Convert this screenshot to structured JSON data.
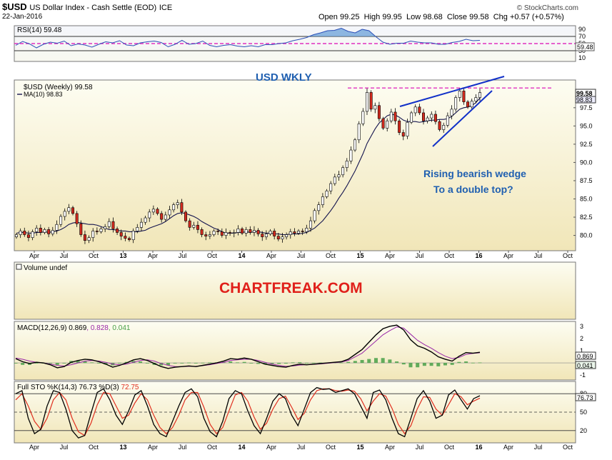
{
  "header": {
    "symbol": "$USD",
    "name": "US Dollar Index - Cash Settle (EOD)",
    "exchange": "ICE",
    "date": "22-Jan-2016",
    "credit": "© StockCharts.com",
    "open_label": "Open",
    "open": "99.25",
    "high_label": "High",
    "high": "99.95",
    "low_label": "Low",
    "low": "98.68",
    "close_label": "Close",
    "close": "99.58",
    "chg_label": "Chg",
    "chg": "+0.57 (+0.57%)"
  },
  "annotations": {
    "title": "USD WKLY",
    "wedge_line1": "Rising bearish wedge",
    "wedge_line2": "To a double top?",
    "watermark": "CHARTFREAK.COM"
  },
  "colors": {
    "panel_bg_top": "#fdfdf2",
    "panel_bg_bottom": "#f1e6b8",
    "rsi_line": "#2c50b8",
    "rsi_fill": "#6aa0d8",
    "ma_line": "#14144e",
    "up_candle": "#ffffff",
    "down_candle": "#d32a1e",
    "wedge": "#1030c8",
    "resistance": "#e030c0",
    "macd_line": "#000000",
    "signal_line": "#9a28a8",
    "hist": "#48a048",
    "sto_k": "#000000",
    "sto_d": "#e03020",
    "accent_blue": "#1f5fb0",
    "accent_red": "#e0201a"
  },
  "chart_data": {
    "type": "candlestick",
    "x_axis_labels": [
      "Apr",
      "Jul",
      "Oct",
      "13",
      "Apr",
      "Jul",
      "Oct",
      "14",
      "Apr",
      "Jul",
      "Oct",
      "15",
      "Apr",
      "Jul",
      "Oct",
      "16",
      "Apr",
      "Jul",
      "Oct"
    ],
    "x_axis_bold": [
      false,
      false,
      false,
      true,
      false,
      false,
      false,
      true,
      false,
      false,
      false,
      true,
      false,
      false,
      false,
      true,
      false,
      false,
      false
    ],
    "rsi": {
      "label": "RSI(14) 59.48",
      "value_badge": "59.48",
      "ticks": [
        "90",
        "70",
        "50",
        "30",
        "10"
      ],
      "tick_values": [
        90,
        70,
        50,
        30,
        10
      ],
      "ylim": [
        0,
        100
      ],
      "guide_levels": [
        70,
        30
      ],
      "dashed_level": 50,
      "values": [
        45,
        56,
        49,
        38,
        48,
        54,
        51,
        57,
        44,
        49,
        46,
        40,
        48,
        55,
        52,
        58,
        46,
        44,
        52,
        55,
        57,
        53,
        41,
        48,
        59,
        48,
        50,
        57,
        45,
        41,
        45,
        47,
        43,
        41,
        44,
        41,
        47,
        47,
        50,
        52,
        58,
        62,
        67,
        75,
        80,
        86,
        87,
        93,
        84,
        80,
        90,
        86,
        69,
        54,
        48,
        51,
        51,
        57,
        54,
        52,
        52,
        48,
        48,
        53,
        56,
        62,
        58,
        59
      ]
    },
    "price": {
      "label": "$USD (Weekly) 99.58",
      "ma_label": "MA(10) 98.83",
      "close_badge": "99.58",
      "ma_badge": "98.83",
      "ticks": [
        "97.5",
        "95.0",
        "92.5",
        "90.0",
        "87.5",
        "85.0",
        "82.5",
        "80.0"
      ],
      "tick_values": [
        97.5,
        95.0,
        92.5,
        90.0,
        87.5,
        85.0,
        82.5,
        80.0
      ],
      "ylim": [
        77.9,
        101.3
      ],
      "closes": [
        80.1,
        80.6,
        80.1,
        79.7,
        80.5,
        81.0,
        80.4,
        80.8,
        80.2,
        80.7,
        81.5,
        82.6,
        83.3,
        83.8,
        83.0,
        81.6,
        80.1,
        79.3,
        79.7,
        80.6,
        80.5,
        80.9,
        81.2,
        81.9,
        80.9,
        80.4,
        79.9,
        79.6,
        79.4,
        80.6,
        81.1,
        81.8,
        82.4,
        83.2,
        83.6,
        83.0,
        82.2,
        82.8,
        83.5,
        84.2,
        84.5,
        83.2,
        82.0,
        81.1,
        81.4,
        80.8,
        80.1,
        79.9,
        80.1,
        80.6,
        80.5,
        80.0,
        80.4,
        80.3,
        80.4,
        80.9,
        80.3,
        80.8,
        80.4,
        80.7,
        80.2,
        79.8,
        80.2,
        80.6,
        79.9,
        79.5,
        79.8,
        80.1,
        80.5,
        80.3,
        80.6,
        80.5,
        81.0,
        82.0,
        83.4,
        84.2,
        85.3,
        86.1,
        87.1,
        88.0,
        88.3,
        89.3,
        90.2,
        91.7,
        93.1,
        95.3,
        97.0,
        99.6,
        97.3,
        97.8,
        96.0,
        94.7,
        95.7,
        96.9,
        95.7,
        94.1,
        93.6,
        95.5,
        96.8,
        97.6,
        96.8,
        95.7,
        96.1,
        96.6,
        95.6,
        94.5,
        95.1,
        96.4,
        97.3,
        98.9,
        99.8,
        98.3,
        97.6,
        98.4,
        98.9,
        99.58
      ],
      "ma10": [
        80.3,
        80.4,
        80.4,
        80.3,
        80.3,
        80.4,
        80.4,
        80.5,
        80.4,
        80.5,
        80.6,
        80.8,
        81.1,
        81.5,
        81.7,
        81.8,
        81.7,
        81.6,
        81.5,
        81.5,
        81.4,
        81.2,
        81.0,
        80.8,
        80.8,
        80.7,
        80.6,
        80.6,
        80.5,
        80.5,
        80.5,
        80.6,
        80.7,
        81.0,
        81.2,
        81.4,
        81.6,
        81.9,
        82.3,
        82.7,
        83.0,
        83.1,
        83.0,
        82.8,
        82.6,
        82.3,
        81.9,
        81.6,
        81.3,
        81.0,
        80.8,
        80.5,
        80.3,
        80.3,
        80.3,
        80.4,
        80.4,
        80.5,
        80.4,
        80.5,
        80.5,
        80.4,
        80.3,
        80.3,
        80.2,
        80.2,
        80.1,
        80.1,
        80.2,
        80.2,
        80.2,
        80.3,
        80.4,
        80.7,
        81.0,
        81.5,
        82.0,
        82.7,
        83.4,
        84.2,
        85.1,
        85.9,
        86.8,
        87.8,
        88.8,
        90.0,
        91.2,
        92.6,
        93.6,
        94.6,
        95.4,
        95.9,
        96.4,
        96.6,
        96.5,
        96.2,
        95.8,
        95.6,
        95.6,
        95.6,
        95.5,
        95.6,
        95.7,
        95.8,
        95.8,
        95.9,
        95.9,
        96.0,
        96.3,
        96.8,
        97.3,
        97.5,
        97.6,
        97.8,
        98.2,
        98.83
      ]
    },
    "volume": {
      "label": "Volume undef"
    },
    "macd": {
      "label": "MACD(12,26,9)",
      "macd_value": "0.869",
      "signal_value": "0.828",
      "hist_value": "0.041",
      "ticks": [
        "3",
        "2",
        "1",
        "-1"
      ],
      "tick_values": [
        3,
        2,
        1,
        -1
      ],
      "ylim": [
        -1.4,
        3.4
      ],
      "macd": [
        0.35,
        0.1,
        -0.05,
        0.05,
        0.0,
        -0.15,
        -0.4,
        -0.3,
        0.05,
        0.2,
        0.3,
        0.25,
        0.1,
        -0.1,
        -0.35,
        -0.2,
        0.0,
        0.25,
        0.35,
        0.2,
        -0.05,
        -0.3,
        -0.45,
        -0.35,
        -0.3,
        -0.25,
        -0.3,
        -0.2,
        -0.1,
        0.0,
        0.15,
        0.35,
        0.3,
        0.4,
        0.3,
        0.1,
        -0.1,
        -0.2,
        -0.3,
        -0.35,
        -0.2,
        -0.1,
        -0.15,
        -0.1,
        -0.05,
        0.0,
        0.05,
        0.1,
        0.3,
        0.7,
        1.1,
        1.7,
        2.3,
        2.8,
        3.0,
        3.1,
        2.7,
        1.9,
        1.4,
        1.2,
        0.9,
        0.5,
        0.3,
        0.15,
        0.55,
        0.85,
        0.8,
        0.87
      ],
      "signal": [
        0.4,
        0.3,
        0.15,
        0.05,
        0.0,
        -0.1,
        -0.2,
        -0.25,
        -0.15,
        0.0,
        0.15,
        0.2,
        0.15,
        0.05,
        -0.1,
        -0.15,
        -0.1,
        0.05,
        0.2,
        0.25,
        0.15,
        -0.05,
        -0.2,
        -0.3,
        -0.3,
        -0.28,
        -0.27,
        -0.22,
        -0.15,
        -0.05,
        0.05,
        0.2,
        0.25,
        0.3,
        0.3,
        0.2,
        0.05,
        -0.1,
        -0.2,
        -0.28,
        -0.25,
        -0.18,
        -0.15,
        -0.12,
        -0.08,
        -0.03,
        0.02,
        0.07,
        0.2,
        0.5,
        0.8,
        1.3,
        1.8,
        2.3,
        2.65,
        2.95,
        2.85,
        2.35,
        1.85,
        1.5,
        1.2,
        0.85,
        0.55,
        0.35,
        0.45,
        0.7,
        0.78,
        0.83
      ]
    },
    "sto": {
      "label_prefix": "Full STO %K(14,3) %D(3)",
      "k_value": "76.73",
      "d_value": "72.75",
      "value_badge": "76.73",
      "ticks": [
        "80",
        "50",
        "20"
      ],
      "tick_values": [
        80,
        50,
        20
      ],
      "ylim": [
        0,
        100
      ],
      "guide_levels": [
        80,
        20
      ],
      "dashed_level": 50,
      "k": [
        80,
        85,
        40,
        15,
        22,
        60,
        85,
        82,
        55,
        20,
        8,
        12,
        48,
        82,
        88,
        70,
        45,
        30,
        52,
        78,
        85,
        60,
        30,
        15,
        10,
        35,
        60,
        82,
        88,
        75,
        40,
        18,
        10,
        35,
        72,
        85,
        80,
        52,
        28,
        15,
        40,
        68,
        80,
        72,
        45,
        28,
        55,
        82,
        90,
        87,
        88,
        82,
        85,
        88,
        80,
        60,
        40,
        82,
        86,
        70,
        40,
        15,
        10,
        40,
        72,
        85,
        68,
        40,
        45,
        78,
        86,
        70,
        55,
        72,
        76.73
      ],
      "d": [
        70,
        80,
        60,
        35,
        22,
        40,
        70,
        82,
        70,
        40,
        18,
        12,
        32,
        62,
        82,
        80,
        60,
        40,
        45,
        65,
        80,
        70,
        45,
        25,
        15,
        25,
        45,
        70,
        82,
        82,
        58,
        30,
        15,
        25,
        52,
        78,
        82,
        68,
        42,
        22,
        32,
        55,
        72,
        76,
        58,
        38,
        48,
        70,
        85,
        88,
        88,
        85,
        84,
        86,
        84,
        72,
        52,
        68,
        80,
        76,
        56,
        30,
        15,
        28,
        55,
        75,
        74,
        55,
        45,
        62,
        80,
        75,
        62,
        68,
        72.75
      ]
    }
  }
}
